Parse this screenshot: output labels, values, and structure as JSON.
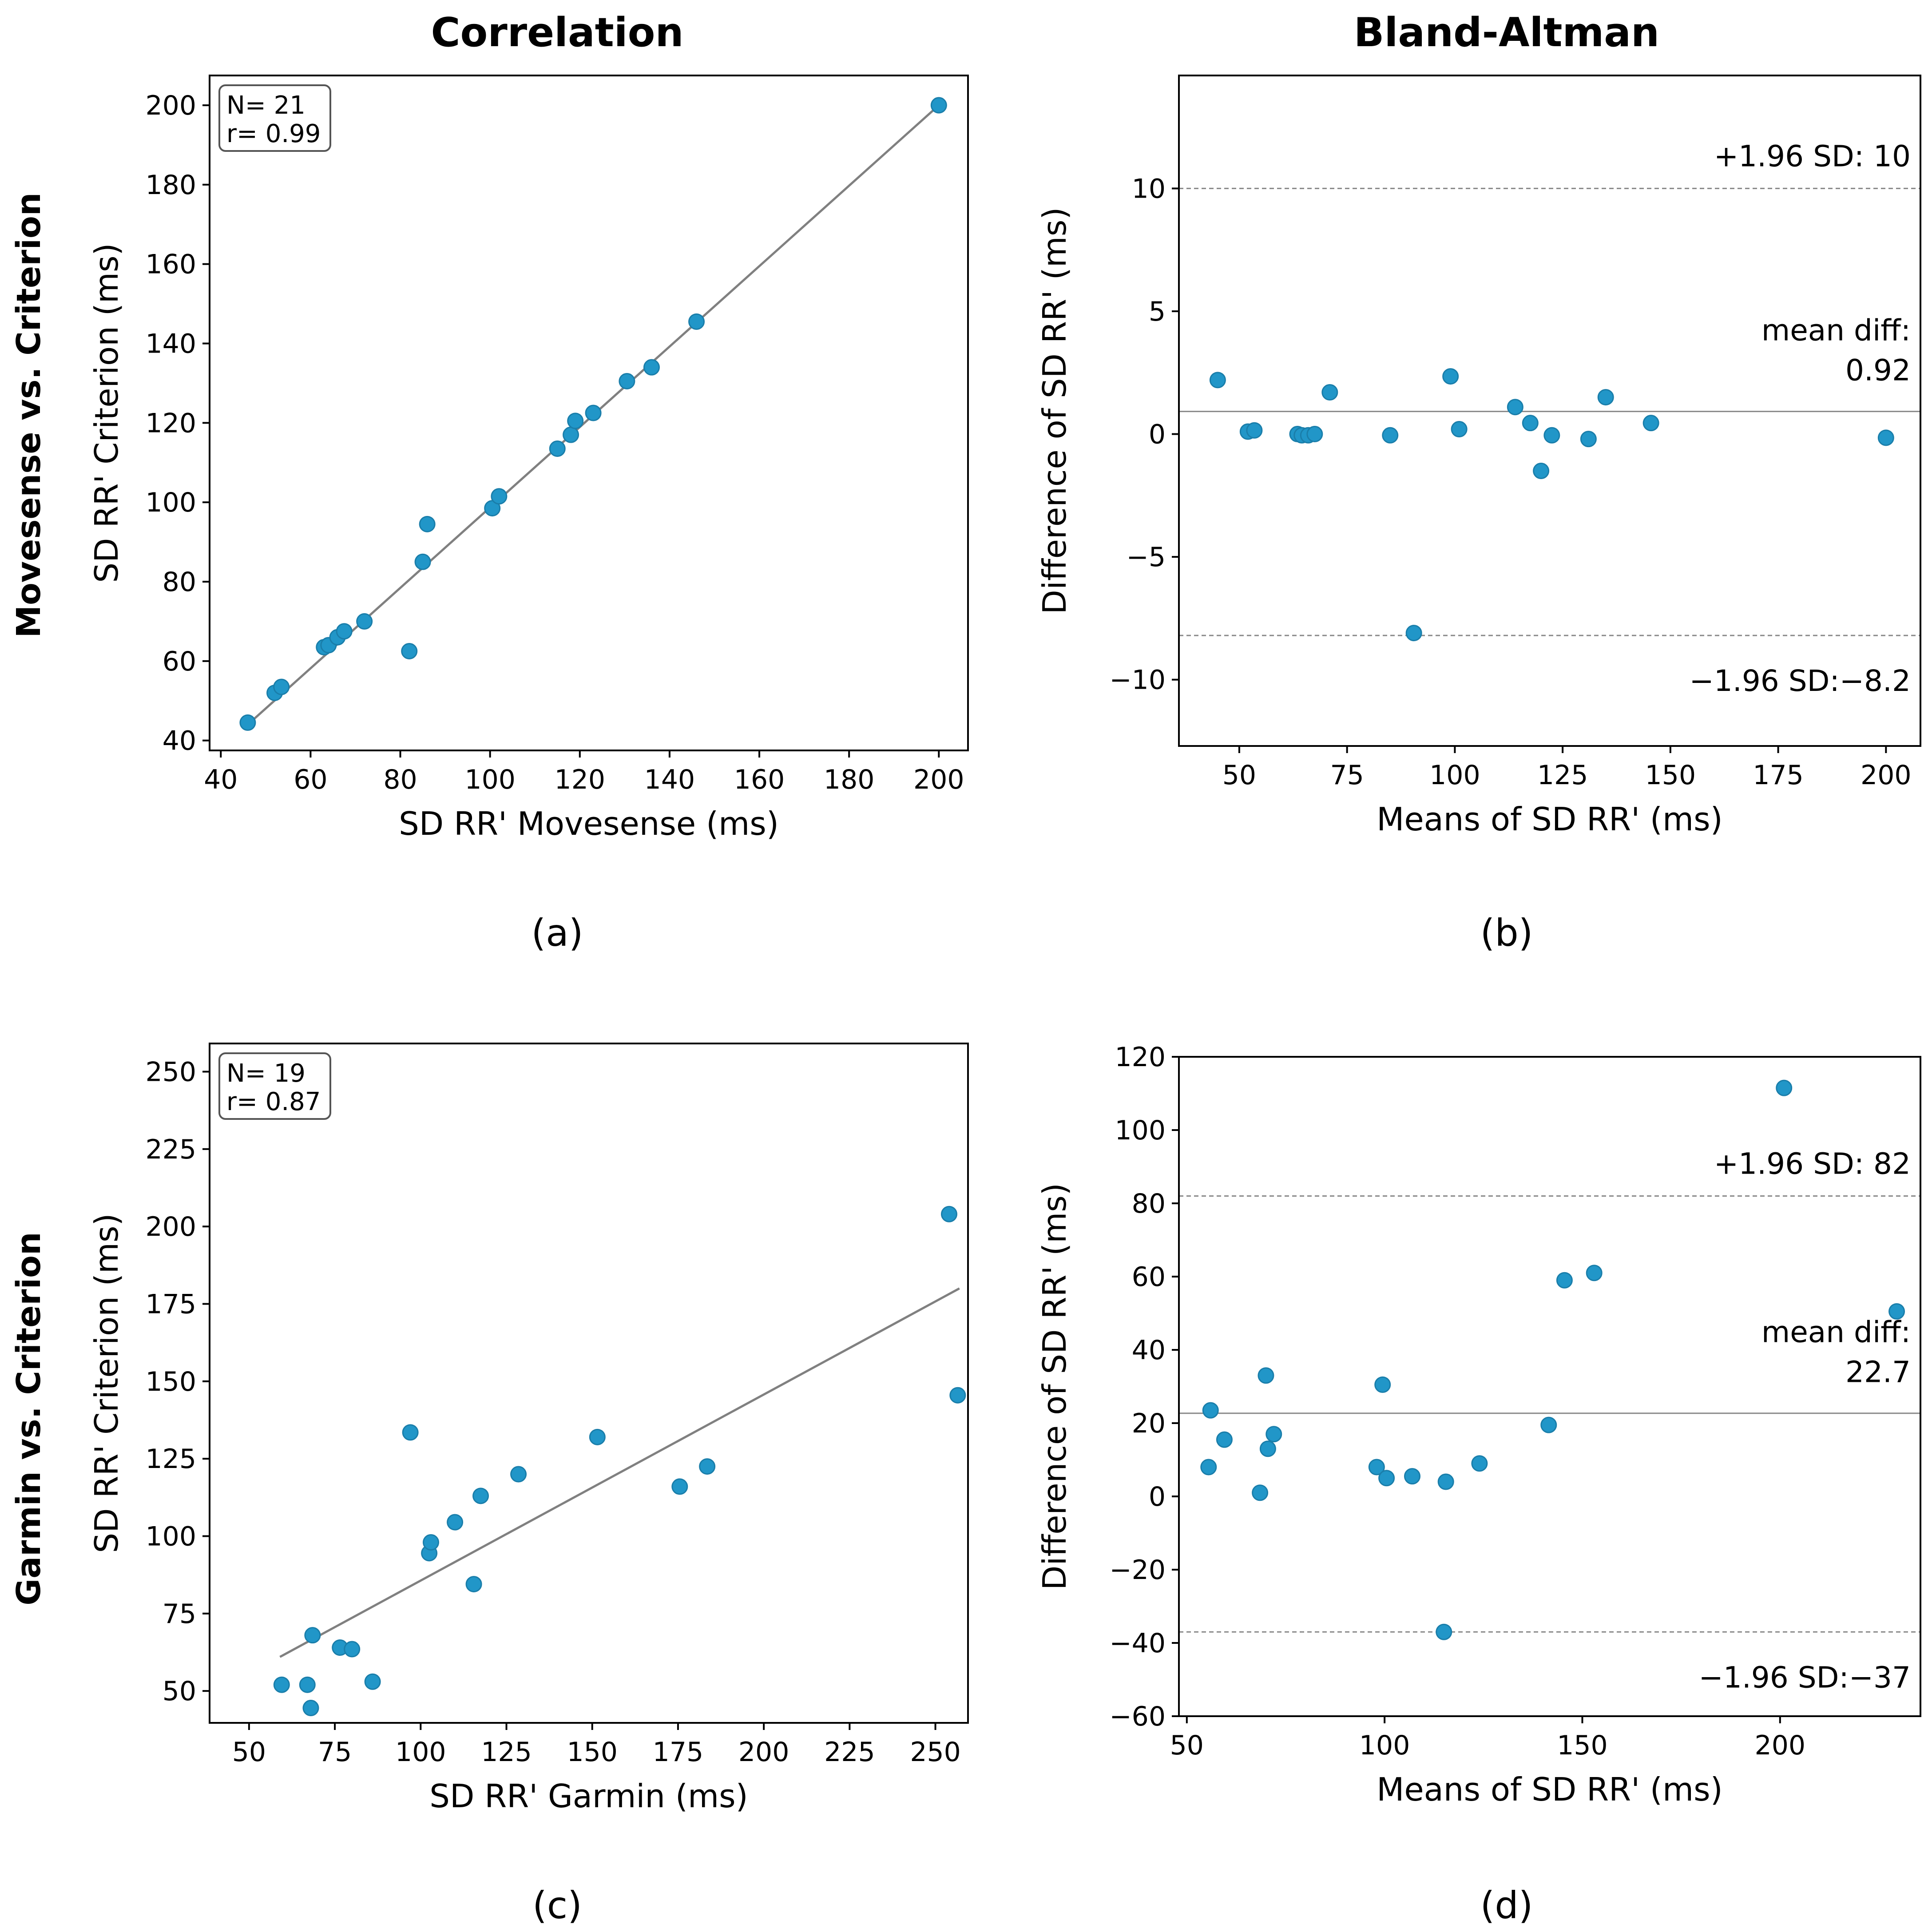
{
  "figure": {
    "col_titles": [
      "Correlation",
      "Bland-Altman"
    ],
    "row_titles": [
      "Movesense vs. Criterion",
      "Garmin vs. Criterion"
    ]
  },
  "colors": {
    "point": "#2196c8",
    "point_edge": "#1a7eaa",
    "line": "#808080"
  },
  "chart_data": [
    {
      "id": "a",
      "type": "scatter",
      "panel_label": "(a)",
      "xlabel": "SD RR' Movesense (ms)",
      "ylabel": "SD RR' Criterion (ms)",
      "xlim": [
        37.5,
        206.5
      ],
      "ylim": [
        37.5,
        207.5
      ],
      "xticks": [
        40,
        60,
        80,
        100,
        120,
        140,
        160,
        180,
        200
      ],
      "yticks": [
        40,
        60,
        80,
        100,
        120,
        140,
        160,
        180,
        200
      ],
      "stats": [
        "N= 21",
        "r= 0.99"
      ],
      "fit_line": [
        [
          46,
          44
        ],
        [
          200,
          200
        ]
      ],
      "points": [
        [
          46,
          44.5
        ],
        [
          52,
          52
        ],
        [
          53.5,
          53.5
        ],
        [
          63,
          63.5
        ],
        [
          64,
          64
        ],
        [
          66,
          66
        ],
        [
          67.5,
          67.5
        ],
        [
          72,
          70
        ],
        [
          82,
          62.5
        ],
        [
          85,
          85
        ],
        [
          86,
          94.5
        ],
        [
          100.5,
          98.5
        ],
        [
          102,
          101.5
        ],
        [
          115,
          113.5
        ],
        [
          118,
          117
        ],
        [
          119,
          120.5
        ],
        [
          123,
          122.5
        ],
        [
          130.5,
          130.5
        ],
        [
          136,
          134
        ],
        [
          146,
          145.5
        ],
        [
          200,
          200
        ]
      ]
    },
    {
      "id": "b",
      "type": "scatter",
      "panel_label": "(b)",
      "xlabel": "Means of SD RR' (ms)",
      "ylabel": "Difference of SD RR' (ms)",
      "xlim": [
        36,
        208
      ],
      "ylim": [
        -12.7,
        14.6
      ],
      "xticks": [
        50,
        75,
        100,
        125,
        150,
        175,
        200
      ],
      "yticks": [
        -10,
        -5,
        0,
        5,
        10
      ],
      "ytick_labels": [
        "−10",
        "−5",
        "0",
        "5",
        "10"
      ],
      "hlines": [
        {
          "y": 10,
          "style": "dashed"
        },
        {
          "y": 0.92,
          "style": "solid"
        },
        {
          "y": -8.2,
          "style": "dashed"
        }
      ],
      "annotations": {
        "upper": "+1.96 SD: 10",
        "mean_l1": "mean diff:",
        "mean_l2": "0.92",
        "lower": "−1.96 SD:−8.2"
      },
      "points": [
        [
          45,
          2.2
        ],
        [
          52,
          0.1
        ],
        [
          53.5,
          0.15
        ],
        [
          63.5,
          0
        ],
        [
          64.5,
          -0.05
        ],
        [
          66,
          -0.05
        ],
        [
          67.5,
          0
        ],
        [
          71,
          1.7
        ],
        [
          85,
          -0.05
        ],
        [
          90.5,
          -8.1
        ],
        [
          99,
          2.35
        ],
        [
          101,
          0.2
        ],
        [
          114,
          1.1
        ],
        [
          117.5,
          0.45
        ],
        [
          120,
          -1.5
        ],
        [
          122.5,
          -0.05
        ],
        [
          131,
          -0.2
        ],
        [
          135,
          1.5
        ],
        [
          145.5,
          0.45
        ],
        [
          200,
          -0.15
        ]
      ]
    },
    {
      "id": "c",
      "type": "scatter",
      "panel_label": "(c)",
      "xlabel": "SD RR' Garmin (ms)",
      "ylabel": "SD RR' Criterion (ms)",
      "xlim": [
        38.5,
        259.5
      ],
      "ylim": [
        39.7,
        259.1
      ],
      "xticks": [
        50,
        75,
        100,
        125,
        150,
        175,
        200,
        225,
        250
      ],
      "yticks": [
        50,
        75,
        100,
        125,
        150,
        175,
        200,
        225,
        250
      ],
      "stats": [
        "N= 19",
        "r= 0.87"
      ],
      "fit_line": [
        [
          59,
          61
        ],
        [
          257,
          180
        ]
      ],
      "points": [
        [
          59.5,
          52
        ],
        [
          67,
          52
        ],
        [
          68,
          44.5
        ],
        [
          68.5,
          68
        ],
        [
          76.5,
          64
        ],
        [
          80,
          63.5
        ],
        [
          86,
          53
        ],
        [
          97,
          133.5
        ],
        [
          102.5,
          94.5
        ],
        [
          103,
          98
        ],
        [
          110,
          104.5
        ],
        [
          115.5,
          84.5
        ],
        [
          117.5,
          113
        ],
        [
          128.5,
          120
        ],
        [
          151.5,
          132
        ],
        [
          175.5,
          116
        ],
        [
          183.5,
          122.5
        ],
        [
          254,
          204
        ],
        [
          256.5,
          145.5
        ]
      ]
    },
    {
      "id": "d",
      "type": "scatter",
      "panel_label": "(d)",
      "xlabel": "Means of SD RR' (ms)",
      "ylabel": "Difference of SD RR' (ms)",
      "xlim": [
        48,
        235.5
      ],
      "ylim": [
        -60,
        120
      ],
      "xticks": [
        50,
        100,
        150,
        200
      ],
      "yticks": [
        -60,
        -40,
        -20,
        0,
        20,
        40,
        60,
        80,
        100,
        120
      ],
      "ytick_labels": [
        "−60",
        "−40",
        "−20",
        "0",
        "20",
        "40",
        "60",
        "80",
        "100",
        "120"
      ],
      "hlines": [
        {
          "y": 82,
          "style": "dashed"
        },
        {
          "y": 22.7,
          "style": "solid"
        },
        {
          "y": -37,
          "style": "dashed"
        }
      ],
      "annotations": {
        "upper": "+1.96 SD: 82",
        "mean_l1": "mean diff:",
        "mean_l2": "22.7",
        "lower": "−1.96 SD:−37"
      },
      "points": [
        [
          55.5,
          8
        ],
        [
          56,
          23.5
        ],
        [
          59.5,
          15.5
        ],
        [
          68.5,
          1
        ],
        [
          70,
          33
        ],
        [
          70.5,
          13
        ],
        [
          72,
          17
        ],
        [
          98,
          8
        ],
        [
          99.5,
          30.5
        ],
        [
          100.5,
          5
        ],
        [
          107,
          5.5
        ],
        [
          115,
          -37
        ],
        [
          115.5,
          4
        ],
        [
          124,
          9
        ],
        [
          141.5,
          19.5
        ],
        [
          145.5,
          59
        ],
        [
          153,
          61
        ],
        [
          201,
          111.5
        ],
        [
          229.5,
          50.5
        ]
      ]
    }
  ]
}
